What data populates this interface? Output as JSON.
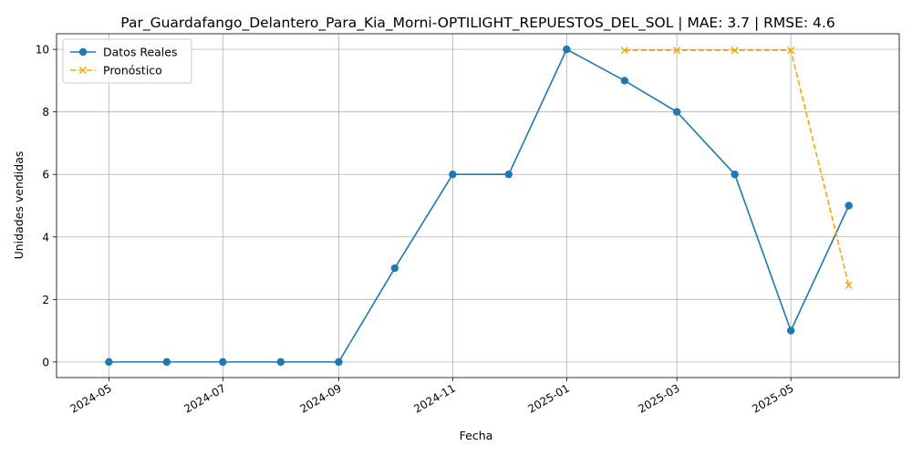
{
  "chart_data": {
    "type": "line",
    "title": "Par_Guardafango_Delantero_Para_Kia_Morni-OPTILIGHT_REPUESTOS_DEL_SOL | MAE: 3.7 | RMSE: 4.6",
    "xlabel": "Fecha",
    "ylabel": "Unidades vendidas",
    "xlim": [
      "2024-04-03",
      "2025-06-28"
    ],
    "ylim": [
      -0.5,
      10.5
    ],
    "x_ticks": [
      "2024-05",
      "2024-07",
      "2024-09",
      "2024-11",
      "2025-01",
      "2025-03",
      "2025-05"
    ],
    "y_ticks": [
      0,
      2,
      4,
      6,
      8,
      10
    ],
    "grid": true,
    "legend_position": "top-left",
    "series": [
      {
        "name": "Datos Reales",
        "color": "#1f77b4",
        "style": "solid",
        "marker": "circle",
        "x": [
          "2024-05-01",
          "2024-06-01",
          "2024-07-01",
          "2024-08-01",
          "2024-09-01",
          "2024-10-01",
          "2024-11-01",
          "2024-12-01",
          "2025-01-01",
          "2025-02-01",
          "2025-03-01",
          "2025-04-01",
          "2025-05-01",
          "2025-06-01"
        ],
        "values": [
          0,
          0,
          0,
          0,
          0,
          3,
          6,
          6,
          10,
          9,
          8,
          6,
          1,
          5
        ]
      },
      {
        "name": "Pronóstico",
        "color": "#ffa500",
        "style": "dashed",
        "marker": "x",
        "x": [
          "2025-02-01",
          "2025-03-01",
          "2025-04-01",
          "2025-05-01",
          "2025-06-01"
        ],
        "values": [
          9.97,
          9.97,
          9.97,
          9.97,
          2.45
        ]
      }
    ]
  }
}
